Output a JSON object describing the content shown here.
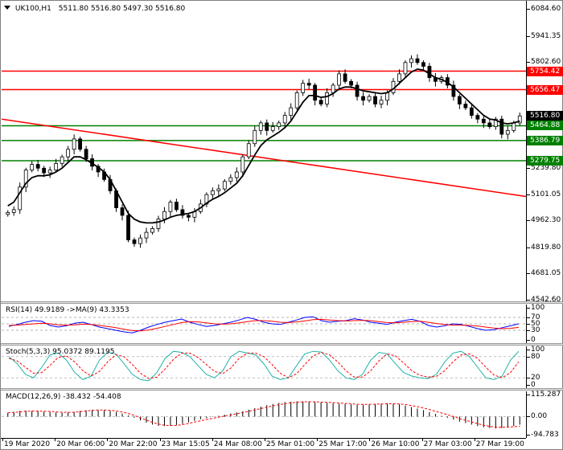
{
  "window": {
    "symbol": "UK100,H1",
    "ohlc": "5511.80 5516.80 5497.30 5516.80"
  },
  "price_axis": {
    "ticks": [
      "6084.60",
      "5941.35",
      "5802.60",
      "5659.35",
      "5520.60",
      "5381.85",
      "5239.80",
      "5101.05",
      "4962.30",
      "4819.80",
      "4681.05",
      "4542.60"
    ],
    "current_price": "5516.80",
    "levels": [
      {
        "label": "5754.42",
        "color": "#ff0000"
      },
      {
        "label": "5656.47",
        "color": "#ff0000"
      },
      {
        "label": "5464.88",
        "color": "#008000"
      },
      {
        "label": "5386.79",
        "color": "#008000"
      },
      {
        "label": "5279.75",
        "color": "#008000"
      }
    ]
  },
  "rsi": {
    "title": "RSI(14) 49.9189  ->MA(9) 43.3353",
    "ticks": [
      "100",
      "70",
      "50",
      "30",
      "0"
    ]
  },
  "stoch": {
    "title": "Stoch(5,3,3) 95.0372 89.1195",
    "ticks": [
      "100",
      "80",
      "20",
      "0"
    ]
  },
  "macd": {
    "title": "MACD(12,26,9) -38.432 -54.408",
    "ticks": [
      "115.287",
      "0.00",
      "-94.783"
    ]
  },
  "time_axis": {
    "labels": [
      "19 Mar 2020",
      "20 Mar 06:00",
      "20 Mar 22:00",
      "23 Mar 15:05",
      "24 Mar 08:00",
      "25 Mar 01:00",
      "25 Mar 17:00",
      "26 Mar 10:00",
      "27 Mar 03:00",
      "27 Mar 19:00"
    ]
  },
  "colors": {
    "bull_bear": "#000000",
    "ma": "#000000",
    "rsi": "#0000ff",
    "rsi_ma": "#ff0000",
    "stoch_main": "#20b2aa",
    "stoch_signal": "#ff0000",
    "macd_hist": "#000000",
    "macd_signal": "#ff0000",
    "trendline": "#ff0000"
  },
  "chart_data": {
    "type": "candlestick",
    "price_close_path": [
      5005,
      5020,
      5140,
      5230,
      5260,
      5240,
      5215,
      5230,
      5265,
      5300,
      5340,
      5395,
      5340,
      5290,
      5250,
      5220,
      5180,
      5120,
      5030,
      4990,
      4860,
      4840,
      4870,
      4900,
      4920,
      4970,
      5010,
      5060,
      5020,
      4990,
      4980,
      5010,
      5050,
      5100,
      5120,
      5130,
      5170,
      5190,
      5220,
      5300,
      5370,
      5440,
      5480,
      5440,
      5460,
      5480,
      5520,
      5560,
      5640,
      5690,
      5680,
      5600,
      5580,
      5640,
      5680,
      5740,
      5700,
      5680,
      5620,
      5600,
      5620,
      5580,
      5600,
      5640,
      5700,
      5740,
      5800,
      5820,
      5800,
      5780,
      5720,
      5700,
      5720,
      5680,
      5620,
      5580,
      5560,
      5520,
      5500,
      5480,
      5460,
      5500,
      5420,
      5440,
      5480,
      5517
    ],
    "ma_path": [
      5040,
      5060,
      5110,
      5160,
      5190,
      5200,
      5200,
      5205,
      5220,
      5240,
      5270,
      5300,
      5300,
      5285,
      5265,
      5245,
      5220,
      5180,
      5120,
      5060,
      5000,
      4970,
      4955,
      4950,
      4950,
      4955,
      4965,
      4980,
      4990,
      4995,
      5000,
      5010,
      5030,
      5055,
      5075,
      5090,
      5110,
      5135,
      5160,
      5200,
      5255,
      5310,
      5360,
      5390,
      5410,
      5430,
      5455,
      5490,
      5540,
      5590,
      5625,
      5625,
      5615,
      5620,
      5635,
      5660,
      5670,
      5670,
      5660,
      5650,
      5645,
      5640,
      5635,
      5640,
      5660,
      5690,
      5720,
      5750,
      5765,
      5760,
      5740,
      5720,
      5710,
      5695,
      5670,
      5640,
      5610,
      5580,
      5550,
      5520,
      5500,
      5495,
      5480,
      5475,
      5480,
      5490
    ],
    "trendline": {
      "from": 5500,
      "to": 5090
    },
    "rsi_path": [
      42,
      48,
      55,
      60,
      58,
      45,
      40,
      44,
      52,
      55,
      48,
      40,
      35,
      30,
      25,
      22,
      30,
      40,
      48,
      55,
      60,
      65,
      55,
      48,
      42,
      45,
      50,
      55,
      62,
      70,
      64,
      55,
      50,
      48,
      55,
      62,
      70,
      72,
      60,
      55,
      58,
      60,
      66,
      62,
      55,
      52,
      48,
      55,
      60,
      64,
      58,
      45,
      40,
      44,
      50,
      48,
      42,
      35,
      30,
      32,
      38,
      44,
      50
    ],
    "rsi_ma_path": [
      45,
      46,
      48,
      50,
      52,
      50,
      47,
      46,
      47,
      49,
      48,
      45,
      42,
      38,
      33,
      29,
      28,
      31,
      36,
      42,
      48,
      54,
      57,
      56,
      53,
      50,
      49,
      50,
      53,
      57,
      60,
      60,
      58,
      55,
      54,
      56,
      59,
      63,
      64,
      62,
      60,
      59,
      60,
      61,
      60,
      57,
      54,
      53,
      55,
      57,
      58,
      55,
      51,
      48,
      46,
      46,
      45,
      43,
      40,
      37,
      35,
      36,
      39
    ],
    "stoch_path": [
      80,
      60,
      30,
      20,
      50,
      85,
      90,
      70,
      35,
      15,
      25,
      70,
      92,
      88,
      60,
      30,
      15,
      12,
      35,
      75,
      95,
      92,
      80,
      55,
      30,
      20,
      40,
      80,
      95,
      90,
      85,
      60,
      25,
      15,
      20,
      55,
      88,
      95,
      93,
      70,
      40,
      20,
      15,
      30,
      70,
      92,
      88,
      60,
      35,
      25,
      20,
      18,
      30,
      65,
      90,
      95,
      80,
      50,
      20,
      15,
      25,
      70,
      95
    ],
    "stoch_signal_path": [
      75,
      68,
      50,
      33,
      35,
      55,
      78,
      82,
      65,
      40,
      25,
      38,
      65,
      85,
      80,
      58,
      33,
      18,
      22,
      45,
      72,
      90,
      90,
      78,
      58,
      38,
      32,
      48,
      75,
      90,
      90,
      80,
      58,
      33,
      20,
      32,
      58,
      82,
      92,
      85,
      65,
      40,
      22,
      22,
      40,
      68,
      88,
      82,
      62,
      40,
      27,
      22,
      24,
      40,
      65,
      85,
      88,
      75,
      50,
      28,
      20,
      35,
      65
    ],
    "macd_hist": [
      20,
      25,
      30,
      32,
      30,
      28,
      26,
      24,
      22,
      20,
      22,
      26,
      30,
      34,
      36,
      36,
      34,
      30,
      24,
      16,
      6,
      -6,
      -20,
      -32,
      -42,
      -48,
      -50,
      -48,
      -44,
      -38,
      -30,
      -22,
      -14,
      -8,
      -2,
      4,
      10,
      16,
      22,
      28,
      36,
      44,
      52,
      60,
      66,
      72,
      76,
      78,
      80,
      80,
      78,
      76,
      74,
      72,
      70,
      68,
      66,
      64,
      62,
      62,
      64,
      66,
      68,
      70,
      68,
      64,
      58,
      50,
      42,
      34,
      24,
      14,
      4,
      -6,
      -16,
      -26,
      -34,
      -42,
      -50,
      -56,
      -60,
      -62,
      -60,
      -56,
      -50,
      -42
    ],
    "macd_signal": [
      20,
      22,
      25,
      28,
      29,
      29,
      28,
      27,
      25,
      23,
      22,
      23,
      26,
      29,
      32,
      34,
      34,
      33,
      29,
      24,
      16,
      6,
      -6,
      -18,
      -30,
      -39,
      -45,
      -47,
      -46,
      -42,
      -36,
      -29,
      -22,
      -15,
      -9,
      -3,
      3,
      9,
      15,
      21,
      28,
      35,
      42,
      49,
      56,
      62,
      68,
      72,
      75,
      77,
      78,
      77,
      76,
      75,
      73,
      71,
      69,
      67,
      65,
      64,
      64,
      65,
      66,
      67,
      67,
      66,
      63,
      58,
      52,
      45,
      37,
      28,
      19,
      10,
      0,
      -10,
      -19,
      -28,
      -37,
      -45,
      -51,
      -55,
      -56,
      -55,
      -53,
      -50
    ]
  }
}
